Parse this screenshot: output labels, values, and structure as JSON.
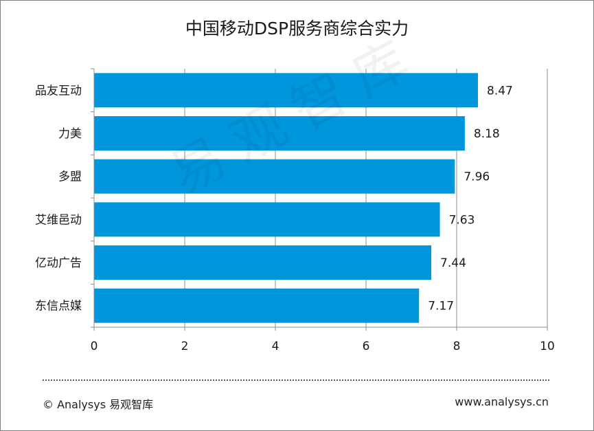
{
  "chart_data": {
    "type": "bar",
    "orientation": "horizontal",
    "title": "中国移动DSP服务商综合实力",
    "categories": [
      "品友互动",
      "力美",
      "多盟",
      "艾维邑动",
      "亿动广告",
      "东信点媒"
    ],
    "values": [
      8.47,
      8.18,
      7.96,
      7.63,
      7.44,
      7.17
    ],
    "value_labels": [
      "8.47",
      "8.18",
      "7.96",
      "7.63",
      "7.44",
      "7.17"
    ],
    "xlim": [
      0,
      10
    ],
    "xticks": [
      0,
      2,
      4,
      6,
      8,
      10
    ],
    "xtick_labels": [
      "0",
      "2",
      "4",
      "6",
      "8",
      "10"
    ],
    "grid": "vertical",
    "legend": "none",
    "bar_color": "#0096dc"
  },
  "watermark": "易观智库",
  "footer": {
    "copyright": "© Analysys 易观智库",
    "website": "www.analysys.cn"
  }
}
